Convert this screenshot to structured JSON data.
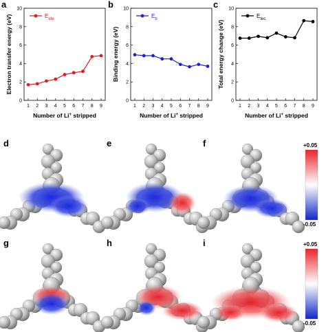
{
  "chart_data": [
    {
      "panel": "a",
      "type": "line",
      "x": [
        1,
        2,
        3,
        4,
        5,
        6,
        7,
        8,
        9
      ],
      "series": [
        {
          "name": "E",
          "name_sub": "ete",
          "color": "#e31a1c",
          "values": [
            1.7,
            1.8,
            2.1,
            2.3,
            2.8,
            3.0,
            3.15,
            4.75,
            4.85
          ]
        }
      ],
      "xlabel": "Number of Li",
      "xlabel_sup": "+",
      "xlabel_tail": " stripped",
      "ylabel": "Electron transfer energy (eV)",
      "xlim": [
        1,
        9
      ],
      "ylim": [
        0,
        10
      ],
      "xticks": [
        "1",
        "2",
        "3",
        "4",
        "5",
        "6",
        "7",
        "8",
        "9"
      ],
      "yticks": [
        "0",
        "2",
        "4",
        "6",
        "8",
        "10"
      ],
      "legend_position": "top-left"
    },
    {
      "panel": "b",
      "type": "line",
      "x": [
        1,
        2,
        3,
        4,
        5,
        6,
        7,
        8,
        9
      ],
      "series": [
        {
          "name": "E",
          "name_sub": "b",
          "color": "#1f1fd6",
          "values": [
            4.95,
            4.85,
            4.85,
            4.5,
            4.5,
            3.9,
            3.65,
            3.9,
            3.7
          ]
        }
      ],
      "xlabel": "Number of Li",
      "xlabel_sup": "+",
      "xlabel_tail": " stripped",
      "ylabel": "Binding energy (eV)",
      "xlim": [
        1,
        9
      ],
      "ylim": [
        0,
        10
      ],
      "xticks": [
        "1",
        "2",
        "3",
        "4",
        "5",
        "6",
        "7",
        "8",
        "9"
      ],
      "yticks": [
        "0",
        "2",
        "4",
        "6",
        "8",
        "10"
      ],
      "legend_position": "top-left"
    },
    {
      "panel": "c",
      "type": "line",
      "x": [
        1,
        2,
        3,
        4,
        5,
        6,
        7,
        8,
        9
      ],
      "series": [
        {
          "name": "E",
          "name_sub": "tec",
          "color": "#000000",
          "values": [
            6.75,
            6.75,
            6.95,
            6.8,
            7.3,
            6.9,
            6.8,
            8.65,
            8.55
          ]
        }
      ],
      "xlabel": "Number of Li",
      "xlabel_sup": "+",
      "xlabel_tail": " stripped",
      "ylabel": "Total energy change (eV)",
      "xlim": [
        1,
        9
      ],
      "ylim": [
        0,
        10
      ],
      "xticks": [
        "1",
        "2",
        "3",
        "4",
        "5",
        "6",
        "7",
        "8",
        "9"
      ],
      "yticks": [
        "0",
        "2",
        "4",
        "6",
        "8",
        "10"
      ],
      "legend_position": "top-left"
    }
  ],
  "maps": {
    "labels": [
      "d",
      "e",
      "f",
      "g",
      "h",
      "i"
    ],
    "description": "electrostatic potential surfaces of molecule (blue negative, red positive)"
  },
  "colorbars": [
    {
      "top": "+0.05",
      "bottom": "-0.05",
      "colors": [
        "#e8242a",
        "#ffffff",
        "#1226c8"
      ]
    },
    {
      "top": "+0.05",
      "bottom": "-0.05",
      "colors": [
        "#e8242a",
        "#ffffff",
        "#1226c8"
      ]
    }
  ]
}
